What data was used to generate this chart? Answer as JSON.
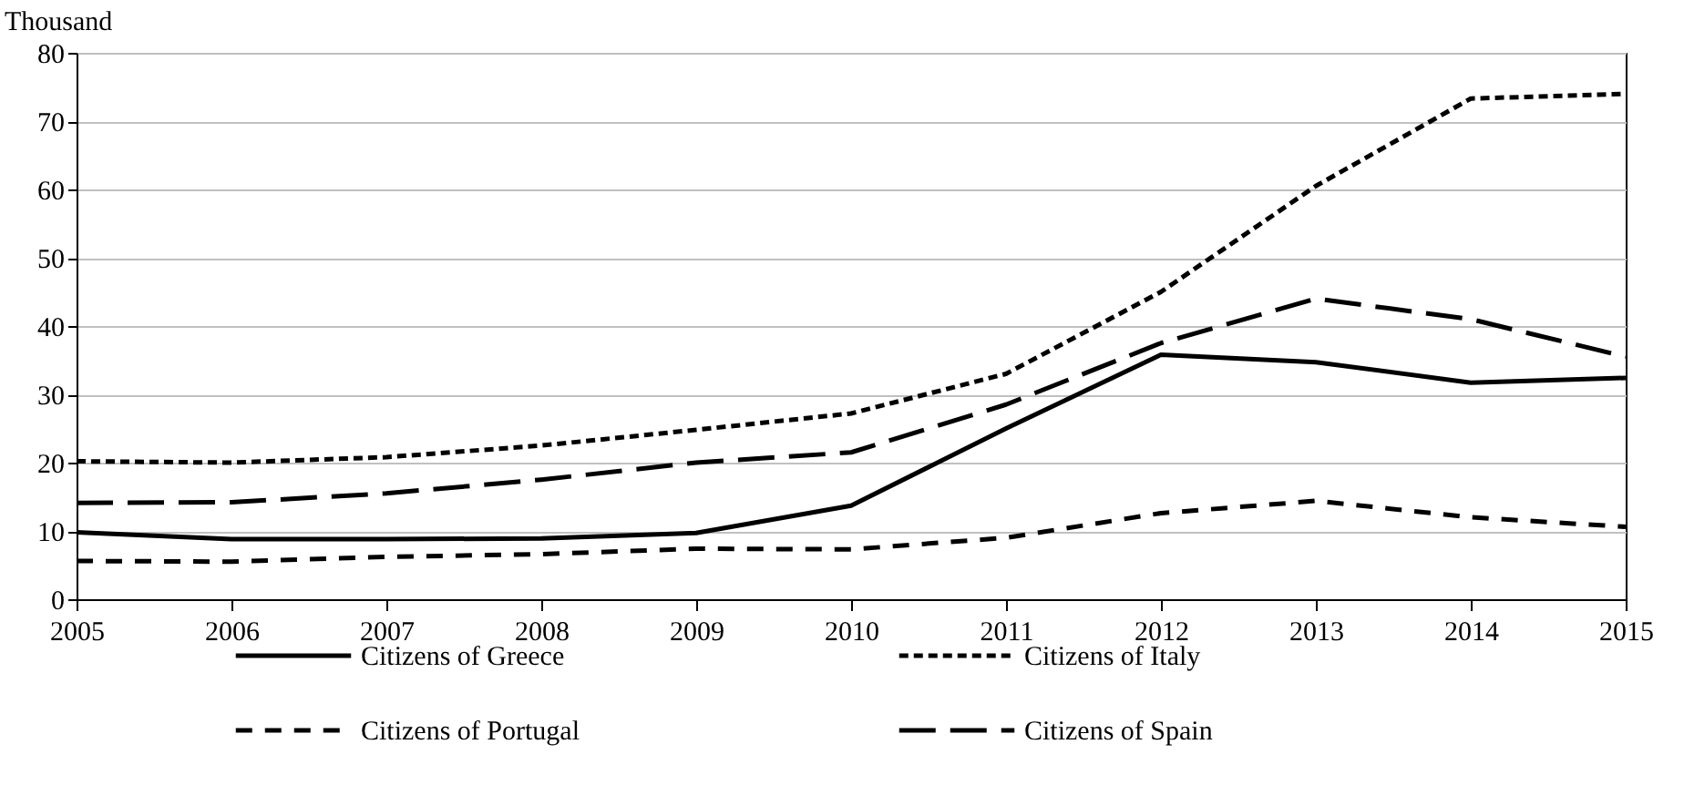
{
  "chart_data": {
    "type": "line",
    "ylabel": "Thousand",
    "x": [
      2005,
      2006,
      2007,
      2008,
      2009,
      2010,
      2011,
      2012,
      2013,
      2014,
      2015
    ],
    "xlim": [
      2005,
      2015
    ],
    "xticks": [
      2005,
      2006,
      2007,
      2008,
      2009,
      2010,
      2011,
      2012,
      2013,
      2014,
      2015
    ],
    "ylim": [
      0,
      80
    ],
    "yticks": [
      0,
      10,
      20,
      30,
      40,
      50,
      60,
      70,
      80
    ],
    "grid": "y",
    "legend": "bottom",
    "marker": "none",
    "series": [
      {
        "name": "Citizens of Greece",
        "color": "#000000",
        "line_style": "solid",
        "values": [
          9.8,
          8.8,
          8.8,
          8.9,
          9.7,
          13.7,
          25,
          35.8,
          34.7,
          31.7,
          32.4
        ]
      },
      {
        "name": "Citizens of Italy",
        "color": "#000000",
        "line_style": "dotted",
        "values": [
          20.2,
          20,
          20.8,
          22.5,
          24.8,
          27.2,
          33,
          45,
          60.5,
          73.3,
          74
        ]
      },
      {
        "name": "Citizens of Portugal",
        "color": "#000000",
        "line_style": "dashed",
        "values": [
          5.6,
          5.5,
          6.2,
          6.6,
          7.4,
          7.3,
          9,
          12.6,
          14.4,
          12,
          10.6
        ]
      },
      {
        "name": "Citizens of Spain",
        "color": "#000000",
        "line_style": "longdash",
        "values": [
          14.1,
          14.2,
          15.5,
          17.5,
          20,
          21.5,
          28.5,
          37.5,
          44,
          41,
          35.5
        ]
      }
    ]
  }
}
